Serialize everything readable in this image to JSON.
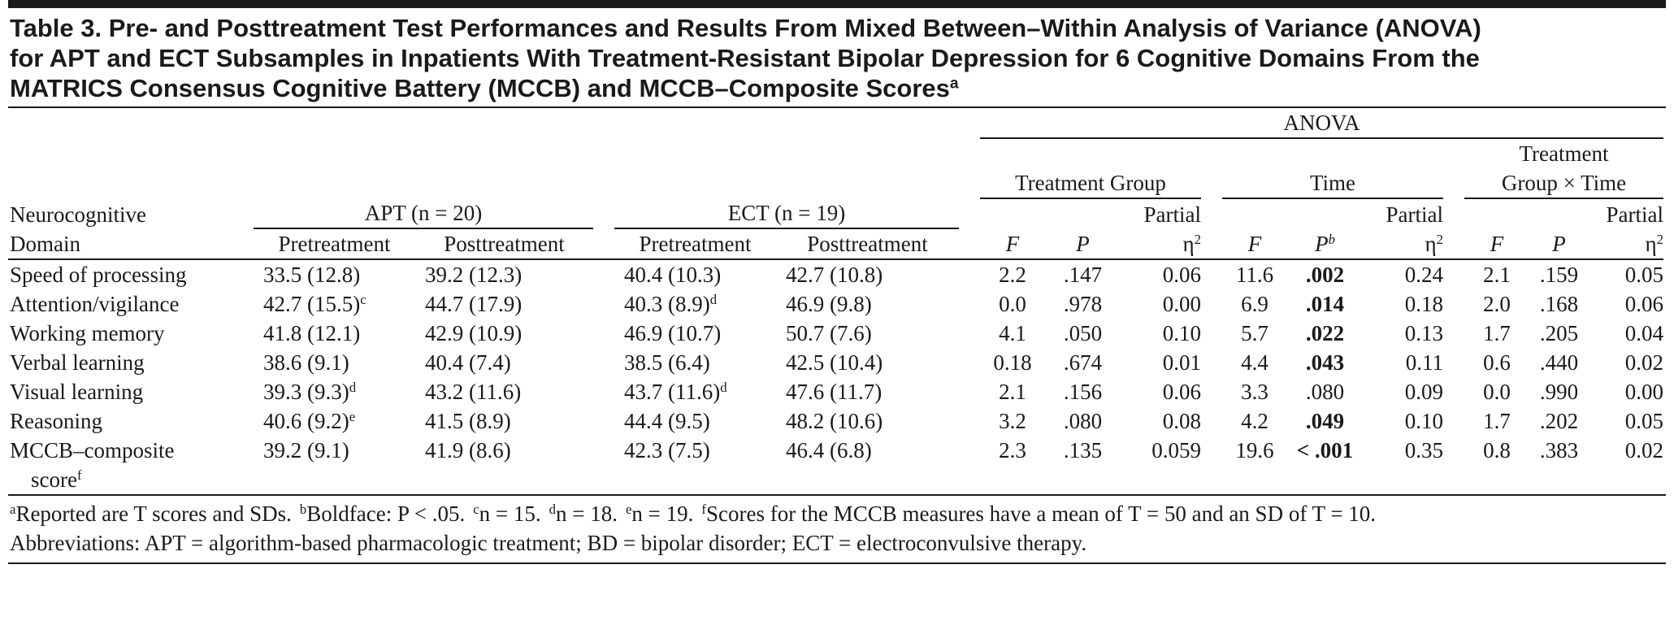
{
  "title": {
    "lines": [
      "Table 3. Pre- and Posttreatment Test Performances and Results From Mixed Between–Within Analysis of Variance (ANOVA)",
      "for APT and ECT Subsamples in Inpatients With Treatment-Resistant Bipolar Depression for 6 Cognitive Domains From the",
      "MATRICS Consensus Cognitive Battery (MCCB) and MCCB–Composite Scores"
    ],
    "sup": "a"
  },
  "header": {
    "anova": "ANOVA",
    "treatment_group": {
      "lines": [
        "Treatment Group"
      ]
    },
    "time": {
      "lines": [
        "Time"
      ]
    },
    "interaction": {
      "lines": [
        "Treatment",
        "Group × Time"
      ]
    },
    "domain": {
      "lines": [
        "Neurocognitive",
        "Domain"
      ]
    },
    "apt": "APT (n = 20)",
    "ect": "ECT (n = 19)",
    "phases": [
      "Pretreatment",
      "Posttreatment",
      "Pretreatment",
      "Posttreatment"
    ],
    "stat_columns": [
      {
        "text": "F"
      },
      {
        "text": "P"
      },
      {
        "line1": "Partial",
        "text": "η",
        "sup": "2"
      },
      {
        "text": "F"
      },
      {
        "text": "P",
        "sup": "b"
      },
      {
        "line1": "Partial",
        "text": "η",
        "sup": "2"
      },
      {
        "text": "F"
      },
      {
        "text": "P"
      },
      {
        "line1": "Partial",
        "text": "η",
        "sup": "2"
      }
    ]
  },
  "table": {
    "rows": [
      {
        "domain": "Speed of processing",
        "cells": [
          "33.5 (12.8)",
          "39.2 (12.3)",
          "40.4 (10.3)",
          "42.7 (10.8)",
          "2.2",
          ".147",
          "0.06",
          "11.6",
          {
            "text": ".002",
            "bold": true
          },
          "0.24",
          "2.1",
          ".159",
          "0.05"
        ]
      },
      {
        "domain": "Attention/vigilance",
        "cells": [
          {
            "text": "42.7 (15.5)",
            "sup": "c"
          },
          "44.7 (17.9)",
          {
            "text": "40.3 (8.9)",
            "sup": "d"
          },
          "46.9 (9.8)",
          "0.0",
          ".978",
          "0.00",
          "6.9",
          {
            "text": ".014",
            "bold": true
          },
          "0.18",
          "2.0",
          ".168",
          "0.06"
        ]
      },
      {
        "domain": "Working memory",
        "cells": [
          "41.8 (12.1)",
          "42.9 (10.9)",
          "46.9 (10.7)",
          "50.7 (7.6)",
          "4.1",
          ".050",
          "0.10",
          "5.7",
          {
            "text": ".022",
            "bold": true
          },
          "0.13",
          "1.7",
          ".205",
          "0.04"
        ]
      },
      {
        "domain": "Verbal learning",
        "cells": [
          "38.6 (9.1)",
          "40.4 (7.4)",
          "38.5 (6.4)",
          "42.5 (10.4)",
          "0.18",
          ".674",
          "0.01",
          "4.4",
          {
            "text": ".043",
            "bold": true
          },
          "0.11",
          "0.6",
          ".440",
          "0.02"
        ]
      },
      {
        "domain": "Visual learning",
        "cells": [
          {
            "text": "39.3 (9.3)",
            "sup": "d"
          },
          "43.2 (11.6)",
          {
            "text": "43.7 (11.6)",
            "sup": "d"
          },
          "47.6 (11.7)",
          "2.1",
          ".156",
          "0.06",
          "3.3",
          ".080",
          "0.09",
          "0.0",
          ".990",
          "0.00"
        ]
      },
      {
        "domain": "Reasoning",
        "cells": [
          {
            "text": "40.6 (9.2)",
            "sup": "e"
          },
          "41.5 (8.9)",
          "44.4 (9.5)",
          "48.2 (10.6)",
          "3.2",
          ".080",
          "0.08",
          "4.2",
          {
            "text": ".049",
            "bold": true
          },
          "0.10",
          "1.7",
          ".202",
          "0.05"
        ]
      },
      {
        "domain": {
          "lines": [
            "MCCB–composite",
            "score"
          ],
          "sup": "f"
        },
        "cells": [
          "39.2 (9.1)",
          "41.9 (8.6)",
          "42.3 (7.5)",
          "46.4 (6.8)",
          "2.3",
          ".135",
          "0.059",
          "19.6",
          {
            "text": "< .001",
            "bold": true
          },
          "0.35",
          "0.8",
          ".383",
          "0.02"
        ]
      }
    ]
  },
  "footnotes": {
    "notes": [
      {
        "sup": "a",
        "text": "Reported are T scores and SDs."
      },
      {
        "sup": "b",
        "text": "Boldface: P < .05."
      },
      {
        "sup": "c",
        "text": "n = 15."
      },
      {
        "sup": "d",
        "text": "n = 18."
      },
      {
        "sup": "e",
        "text": "n = 19."
      },
      {
        "sup": "f",
        "text": "Scores for the MCCB measures have a mean of T = 50 and an SD of T = 10."
      }
    ],
    "abbreviations": "Abbreviations: APT = algorithm-based pharmacologic treatment; BD = bipolar disorder; ECT = electroconvulsive therapy."
  }
}
